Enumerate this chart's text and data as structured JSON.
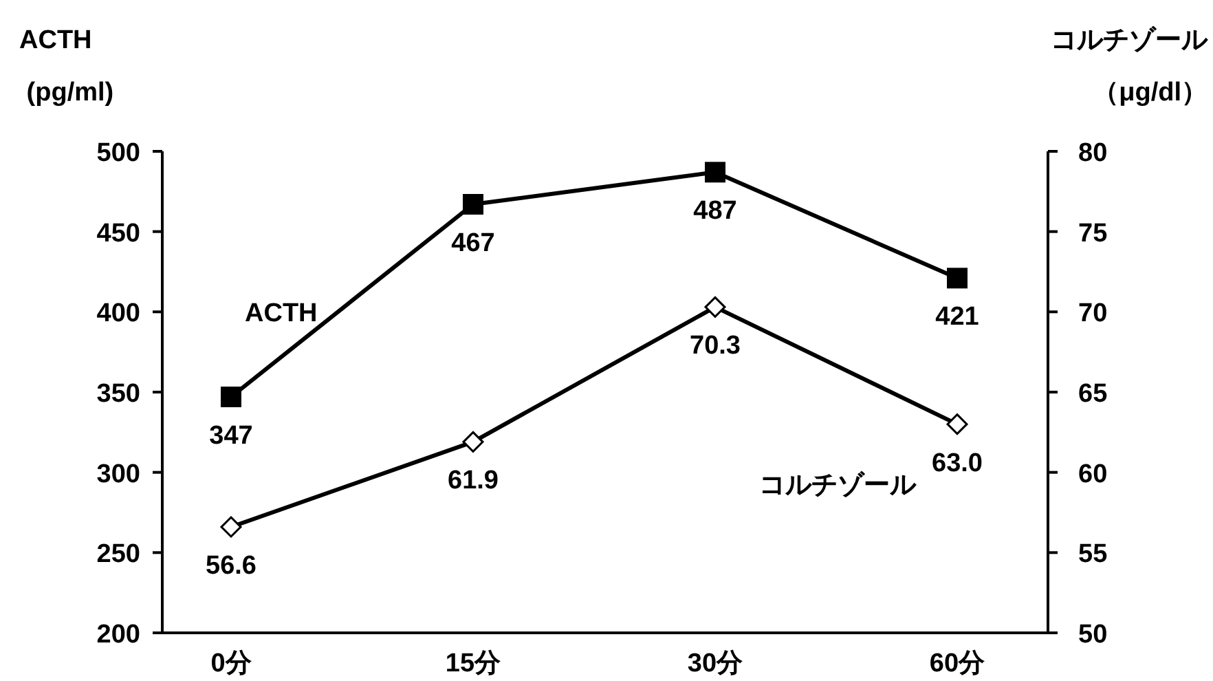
{
  "chart_data": {
    "type": "line",
    "categories": [
      "0分",
      "15分",
      "30分",
      "60分"
    ],
    "ylabel": "ACTH (pg/ml)",
    "y2label": "コルチゾール（μg/dl）",
    "ylim": [
      200,
      500
    ],
    "yticks": [
      200,
      250,
      300,
      350,
      400,
      450,
      500
    ],
    "y2lim": [
      50,
      80
    ],
    "y2ticks": [
      50,
      55,
      60,
      65,
      70,
      75,
      80
    ],
    "grid": false,
    "line_style": "solid",
    "series": [
      {
        "name": "ACTH",
        "color": "#000000",
        "marker": "square",
        "values": [
          347,
          467,
          487,
          421
        ],
        "value_labels": [
          "347",
          "467",
          "487",
          "421"
        ]
      },
      {
        "name": "コルチゾール",
        "color": "#000000",
        "marker": "diamond",
        "axis": "y2",
        "values": [
          56.6,
          61.9,
          70.3,
          63.0
        ],
        "value_labels": [
          "56.6",
          "61.9",
          "70.3",
          "63.0"
        ]
      }
    ]
  }
}
